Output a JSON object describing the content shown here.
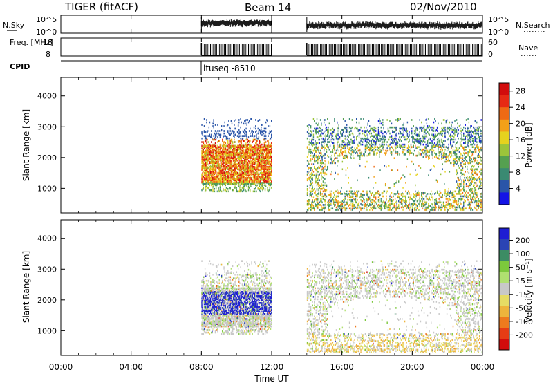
{
  "header": {
    "title": "TIGER (fitACF)",
    "beam": "Beam 14",
    "date": "02/Nov/2010",
    "cpid_label": "CPID",
    "cpid_value": "ltuseq -8510"
  },
  "colors": {
    "power_scale": [
      "#1414e6",
      "#2a55a8",
      "#3a8a72",
      "#55a050",
      "#9cc43a",
      "#e6d21e",
      "#f2a018",
      "#ee6a14",
      "#e62a14",
      "#d20c0c"
    ],
    "velocity_scale": [
      "#1e1ed2",
      "#2a44b4",
      "#3c8c64",
      "#7cc83c",
      "#b0e070",
      "#c8c8c8",
      "#e6dc64",
      "#eeb43c",
      "#ee7a1e",
      "#e63c14",
      "#d20c0c"
    ]
  },
  "chart_data": [
    {
      "type": "line",
      "name": "nsky-nsearch",
      "left_label": "N.Sky",
      "right_label": "N.Search",
      "left_ticks": [
        "10^5",
        "10^0"
      ],
      "right_ticks": [
        "10^5",
        "10^0"
      ],
      "xlim": [
        0,
        24
      ],
      "segments": [
        [
          8.0,
          12.0
        ],
        [
          14.0,
          24.0
        ]
      ]
    },
    {
      "type": "bar",
      "name": "freq-nave",
      "left_label": "Freq. [MHz]",
      "right_label": "Nave",
      "left_ticks": [
        "18",
        "8"
      ],
      "right_ticks": [
        "60",
        "0"
      ],
      "left_ylim": [
        8,
        18
      ],
      "right_ylim": [
        0,
        60
      ],
      "xlim": [
        0,
        24
      ],
      "segments": [
        [
          8.0,
          12.0
        ],
        [
          14.0,
          24.0
        ]
      ]
    },
    {
      "type": "heatmap",
      "name": "power",
      "ylabel": "Slant Range [km]",
      "ylim": [
        200,
        4600
      ],
      "xlim": [
        0,
        24
      ],
      "yticks": [
        "1000",
        "2000",
        "3000",
        "4000"
      ],
      "ytick_values": [
        1000,
        2000,
        3000,
        4000
      ],
      "colorbar_label": "Power [dB]",
      "colorbar_ticks": [
        "4",
        "8",
        "12",
        "16",
        "20",
        "24",
        "28"
      ],
      "colorbar_values": [
        4,
        8,
        12,
        16,
        20,
        24,
        28
      ],
      "colorbar_range": [
        0,
        30
      ]
    },
    {
      "type": "heatmap",
      "name": "velocity",
      "ylabel": "Slant Range [km]",
      "ylim": [
        200,
        4600
      ],
      "xlim": [
        0,
        24
      ],
      "yticks": [
        "1000",
        "2000",
        "3000",
        "4000"
      ],
      "ytick_values": [
        1000,
        2000,
        3000,
        4000
      ],
      "colorbar_label": "Velocity [m s⁻¹]",
      "colorbar_ticks": [
        "200",
        "100",
        "50",
        "15",
        "-15",
        "-50",
        "-100",
        "-200"
      ],
      "xlabel": "Time UT",
      "xticks": [
        "00:00",
        "04:00",
        "08:00",
        "12:00",
        "16:00",
        "20:00",
        "00:00"
      ],
      "xtick_values": [
        0,
        4,
        8,
        12,
        16,
        20,
        24
      ]
    }
  ]
}
